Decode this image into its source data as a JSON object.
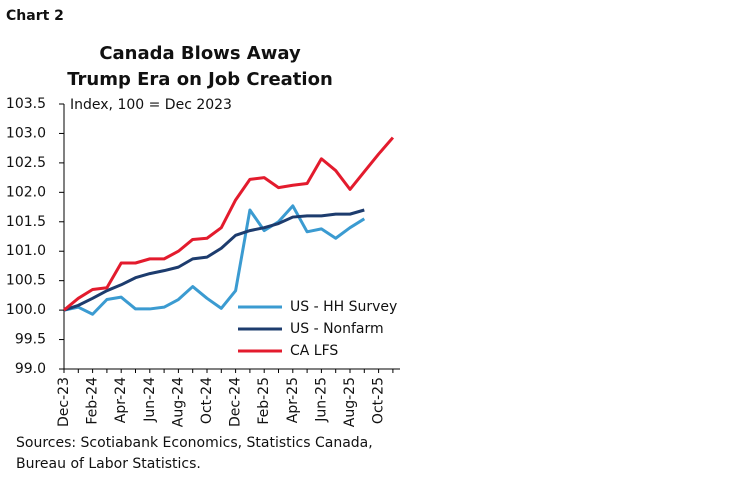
{
  "header": "Chart 2",
  "chart_data": {
    "type": "line",
    "title": [
      "Canada Blows Away",
      "Trump Era on Job Creation"
    ],
    "y_label": "Index, 100 = Dec 2023",
    "categories": [
      "Dec-23",
      null,
      "Feb-24",
      null,
      "Apr-24",
      null,
      "Jun-24",
      null,
      "Aug-24",
      null,
      "Oct-24",
      null,
      "Dec-24",
      null,
      "Feb-25",
      null,
      "Apr-25",
      null,
      "Jun-25",
      null,
      "Aug-25",
      null,
      "Oct-25",
      null
    ],
    "series": [
      {
        "name": "US - HH Survey",
        "color": "#3b9bd1",
        "values": [
          100.0,
          100.05,
          99.93,
          100.18,
          100.22,
          100.02,
          100.02,
          100.05,
          100.18,
          100.4,
          100.2,
          100.03,
          100.33,
          101.7,
          101.35,
          101.5,
          101.77,
          101.33,
          101.38,
          101.22,
          101.4,
          101.55,
          null,
          null
        ]
      },
      {
        "name": "US - Nonfarm",
        "color": "#1d3c6e",
        "values": [
          100.0,
          100.08,
          100.2,
          100.33,
          100.43,
          100.55,
          100.62,
          100.67,
          100.73,
          100.87,
          100.9,
          101.05,
          101.27,
          101.35,
          101.4,
          101.47,
          101.58,
          101.6,
          101.6,
          101.63,
          101.63,
          101.7,
          null,
          null
        ]
      },
      {
        "name": "CA LFS",
        "color": "#e31b2d",
        "values": [
          100.0,
          100.2,
          100.35,
          100.38,
          100.8,
          100.8,
          100.87,
          100.87,
          101.0,
          101.2,
          101.22,
          101.4,
          101.87,
          102.22,
          102.25,
          102.08,
          102.12,
          102.15,
          102.57,
          102.37,
          102.05,
          102.35,
          102.65,
          102.93
        ]
      }
    ],
    "ylim": [
      99.0,
      103.5
    ],
    "yticks": [
      {
        "value": 99,
        "label": "99.0"
      },
      99.5,
      {
        "value": 100,
        "label": "100.0"
      },
      100.5,
      {
        "value": 101,
        "label": "101.0"
      },
      101.5,
      {
        "value": 102,
        "label": "102.0"
      },
      102.5,
      {
        "value": 103,
        "label": "103.0"
      },
      103.5
    ],
    "grid": false,
    "legend": "lower-right"
  },
  "source": [
    "Sources: Scotiabank Economics, Statistics Canada,",
    "Bureau of Labor Statistics."
  ]
}
